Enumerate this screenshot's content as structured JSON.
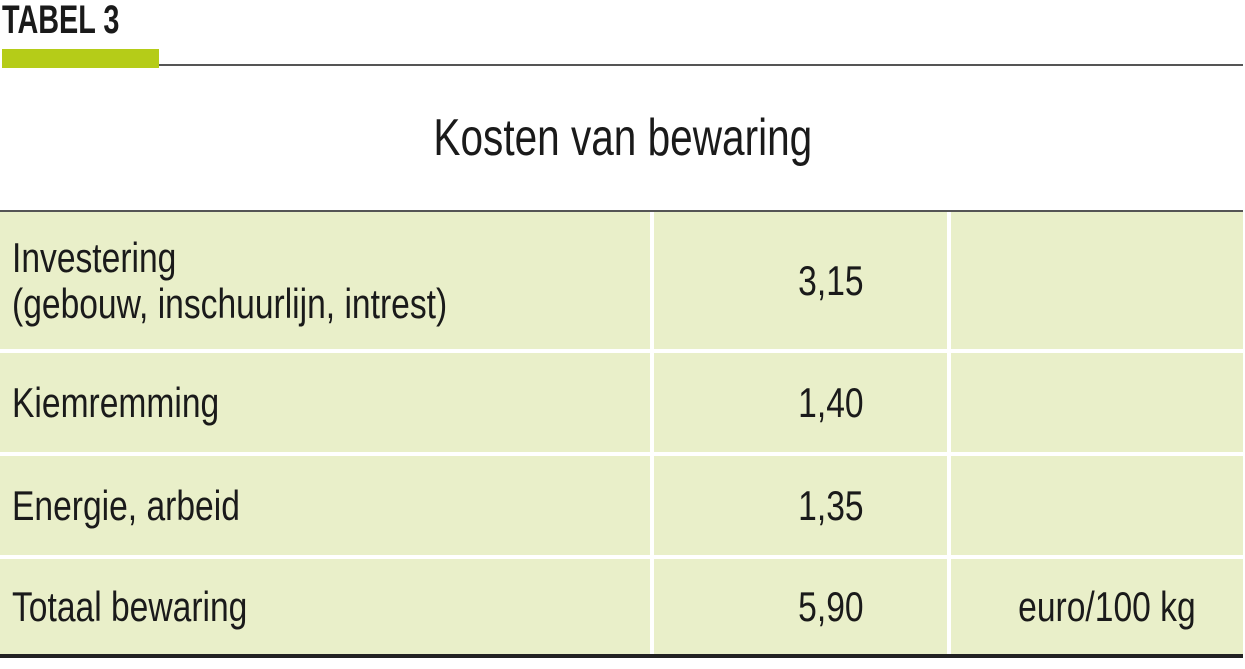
{
  "table_label": "TABEL 3",
  "title": "Kosten van bewaring",
  "colors": {
    "accent": "#b5cc18",
    "table_background": "#e9efc9"
  },
  "rows": [
    {
      "item": "Investering",
      "item_detail": "(gebouw, inschuurlijn, intrest)",
      "value": "3,15",
      "unit": ""
    },
    {
      "item": "Kiemremming",
      "value": "1,40",
      "unit": ""
    },
    {
      "item": "Energie, arbeid",
      "value": "1,35",
      "unit": ""
    },
    {
      "item": "Totaal bewaring",
      "value": "5,90",
      "unit": "euro/100 kg"
    }
  ]
}
